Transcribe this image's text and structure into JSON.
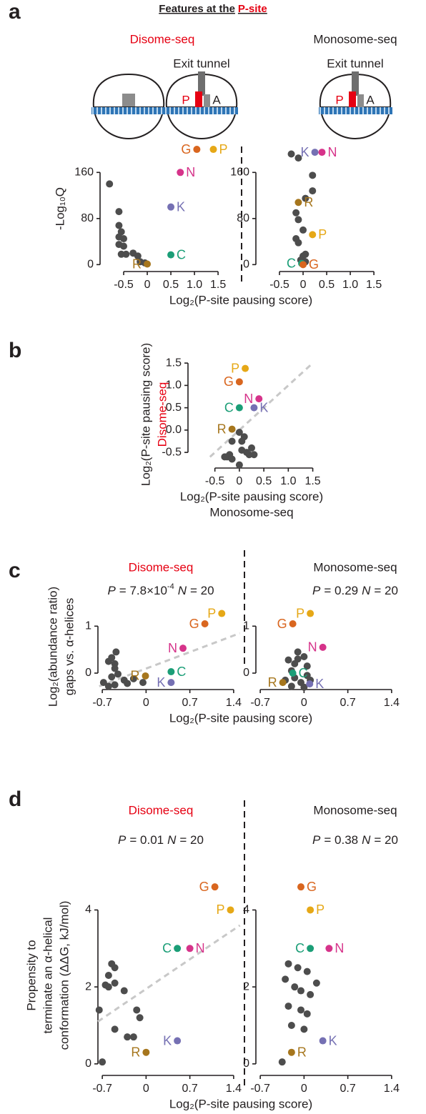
{
  "panel_labels": [
    "a",
    "b",
    "c",
    "d"
  ],
  "title": {
    "prefix": "Features at the",
    "highlight": "P-site"
  },
  "diagram": {
    "exit_tunnel": [
      "Exit tunnel",
      "Exit tunnel"
    ],
    "sites": [
      [
        "P",
        "A"
      ],
      [
        "P",
        "A"
      ]
    ]
  },
  "chart_data": [
    {
      "type": "scatter",
      "subtitle": "Disome-seq",
      "subtitle_color": "#e60012",
      "ylabel": [
        "-Log₁₀Q"
      ],
      "xlabel": [
        "Log₂(P-site pausing score)"
      ],
      "xlim": [
        -1.0,
        1.65
      ],
      "ylim": [
        -12,
        205
      ],
      "xticks": [
        -0.5,
        0,
        0.5,
        {
          "value": 1,
          "label": "1.0"
        },
        1.5
      ],
      "yticks": [
        0,
        80,
        160
      ],
      "series": [
        {
          "color": "#4d4d4d",
          "x": [
            -0.8,
            -0.6,
            -0.6,
            -0.55,
            -0.6,
            -0.5,
            -0.6,
            -0.5,
            -0.55,
            -0.45,
            -0.3,
            -0.2,
            -0.15,
            -0.05
          ],
          "y": [
            140,
            92,
            68,
            57,
            48,
            45,
            35,
            32,
            18,
            18,
            20,
            15,
            5,
            3
          ]
        }
      ],
      "points": [
        {
          "label": "G",
          "color": "#d9661f",
          "x": 1.05,
          "y": 200,
          "label_side": "left"
        },
        {
          "label": "P",
          "color": "#e6a817",
          "x": 1.4,
          "y": 200,
          "label_side": "right"
        },
        {
          "label": "N",
          "color": "#d6338a",
          "x": 0.7,
          "y": 160,
          "label_side": "right"
        },
        {
          "label": "K",
          "color": "#7570b3",
          "x": 0.5,
          "y": 100,
          "label_side": "right"
        },
        {
          "label": "C",
          "color": "#1b9e77",
          "x": 0.5,
          "y": 17,
          "label_side": "right"
        },
        {
          "label": "R",
          "color": "#a6761d",
          "x": 0,
          "y": 1,
          "label_side": "left"
        }
      ]
    },
    {
      "type": "scatter",
      "subtitle": "Monosome-seq",
      "subtitle_color": "#231f20",
      "xlim": [
        -1.0,
        1.65
      ],
      "ylim": [
        -12,
        205
      ],
      "xticks": [
        -0.5,
        0,
        0.5,
        {
          "value": 1,
          "label": "1.0"
        },
        1.5
      ],
      "yticks": [
        0,
        80,
        160
      ],
      "series": [
        {
          "color": "#4d4d4d",
          "x": [
            -0.25,
            -0.1,
            0.2,
            0.2,
            0.05,
            -0.15,
            -0.1,
            0,
            -0.15,
            -0.1,
            0,
            0.05,
            -0.05,
            0.05
          ],
          "y": [
            192,
            185,
            155,
            128,
            115,
            90,
            78,
            60,
            45,
            38,
            15,
            18,
            8,
            5
          ]
        }
      ],
      "points": [
        {
          "label": "K",
          "color": "#7570b3",
          "x": 0.25,
          "y": 195,
          "label_side": "left"
        },
        {
          "label": "N",
          "color": "#d6338a",
          "x": 0.4,
          "y": 195,
          "label_side": "right"
        },
        {
          "label": "R",
          "color": "#a6761d",
          "x": -0.1,
          "y": 108,
          "label_side": "right"
        },
        {
          "label": "P",
          "color": "#e6a817",
          "x": 0.2,
          "y": 52,
          "label_side": "right"
        },
        {
          "label": "C",
          "color": "#1b9e77",
          "x": -0.03,
          "y": 2,
          "label_side": "left"
        },
        {
          "label": "G",
          "color": "#d9661f",
          "x": 0,
          "y": 0,
          "label_side": "right"
        }
      ]
    },
    {
      "type": "scatter",
      "ylabel": [
        "Log₂(P-site pausing score)",
        "Disome-seq"
      ],
      "ylabel_colors": [
        "#231f20",
        "#e60012"
      ],
      "xlabel": [
        "Log₂(P-site pausing score)",
        "Monosome-seq"
      ],
      "xlim": [
        -1.05,
        1.55
      ],
      "ylim": [
        -0.85,
        1.55
      ],
      "xticks": [
        -0.5,
        0,
        0.5,
        {
          "value": 1,
          "label": "1.0"
        },
        1.5
      ],
      "yticks": [
        -0.5,
        {
          "value": 0,
          "label": "0.0"
        },
        0.5,
        {
          "value": 1,
          "label": "1.0"
        },
        1.5
      ],
      "trend": {
        "x": [
          -0.6,
          1.45
        ],
        "y": [
          -0.6,
          1.45
        ]
      },
      "series": [
        {
          "color": "#4d4d4d",
          "x": [
            0,
            0.1,
            0.05,
            -0.15,
            0.25,
            0.05,
            -0.2,
            -0.25,
            0.2,
            0.3,
            -0.15,
            -0.3,
            0,
            0.15
          ],
          "y": [
            -0.05,
            -0.15,
            -0.25,
            -0.25,
            -0.4,
            -0.45,
            -0.55,
            -0.6,
            -0.55,
            -0.55,
            -0.65,
            -0.6,
            -0.78,
            -0.5
          ]
        }
      ],
      "points": [
        {
          "label": "P",
          "color": "#e6a817",
          "x": 0.12,
          "y": 1.38,
          "label_side": "left"
        },
        {
          "label": "G",
          "color": "#d9661f",
          "x": 0,
          "y": 1.08,
          "label_side": "left"
        },
        {
          "label": "N",
          "color": "#d6338a",
          "x": 0.4,
          "y": 0.7,
          "label_side": "left"
        },
        {
          "label": "C",
          "color": "#1b9e77",
          "x": 0,
          "y": 0.5,
          "label_side": "left"
        },
        {
          "label": "K",
          "color": "#7570b3",
          "x": 0.3,
          "y": 0.5,
          "label_side": "right"
        },
        {
          "label": "R",
          "color": "#a6761d",
          "x": -0.15,
          "y": 0.02,
          "label_side": "left"
        }
      ]
    },
    {
      "type": "scatter",
      "subtitle": "Disome-seq",
      "subtitle_color": "#e60012",
      "stats": {
        "p_label": "P",
        "p_value": "= 7.8×10",
        "p_exp": "-4",
        "n_label": "N",
        "n_value": "= 20"
      },
      "ylabel": [
        "Log₂(abundance ratio)",
        "gaps vs. α-helices"
      ],
      "xlabel": [
        "Log₂(P-site pausing score)"
      ],
      "xlim": [
        -0.77,
        1.55
      ],
      "ylim": [
        -0.35,
        1.4
      ],
      "xticks": [
        -0.7,
        0,
        0.7,
        1.4
      ],
      "yticks": [
        0,
        1
      ],
      "trend": {
        "x": [
          -0.75,
          1.5
        ],
        "y": [
          -0.28,
          0.85
        ]
      },
      "series": [
        {
          "color": "#4d4d4d",
          "x": [
            -0.55,
            -0.48,
            -0.5,
            -0.6,
            -0.5,
            -0.45,
            -0.55,
            -0.35,
            -0.2,
            -0.05,
            -0.3,
            -0.5,
            -0.68,
            -0.6
          ],
          "y": [
            0.33,
            0.45,
            0.2,
            0.25,
            0.1,
            -0.02,
            -0.08,
            -0.15,
            -0.12,
            -0.2,
            -0.22,
            -0.25,
            -0.2,
            -0.28
          ]
        }
      ],
      "points": [
        {
          "label": "P",
          "color": "#e6a817",
          "x": 1.21,
          "y": 1.27,
          "label_side": "left"
        },
        {
          "label": "G",
          "color": "#d9661f",
          "x": 0.94,
          "y": 1.05,
          "label_side": "left"
        },
        {
          "label": "N",
          "color": "#d6338a",
          "x": 0.59,
          "y": 0.53,
          "label_side": "left"
        },
        {
          "label": "C",
          "color": "#1b9e77",
          "x": 0.4,
          "y": 0.03,
          "label_side": "right"
        },
        {
          "label": "K",
          "color": "#7570b3",
          "x": 0.4,
          "y": -0.2,
          "label_side": "left"
        },
        {
          "label": "R",
          "color": "#a6761d",
          "x": -0.01,
          "y": -0.06,
          "label_side": "left"
        }
      ]
    },
    {
      "type": "scatter",
      "subtitle": "Monosome-seq",
      "subtitle_color": "#231f20",
      "stats": {
        "p_label": "P",
        "p_value": "= 0.29",
        "n_label": "N",
        "n_value": "= 20"
      },
      "xlim": [
        -0.77,
        1.55
      ],
      "ylim": [
        -0.35,
        1.4
      ],
      "xticks": [
        -0.7,
        0,
        0.7,
        1.4
      ],
      "yticks": [
        0,
        1
      ],
      "series": [
        {
          "color": "#4d4d4d",
          "x": [
            -0.1,
            0,
            -0.1,
            -0.25,
            -0.15,
            0.05,
            -0.2,
            0.05,
            -0.15,
            -0.3,
            -0.05,
            0.1,
            -0.2,
            0
          ],
          "y": [
            0.45,
            0.35,
            0.3,
            0.28,
            0.2,
            0.15,
            0.05,
            -0.05,
            -0.1,
            -0.15,
            -0.2,
            -0.15,
            -0.28,
            -0.3
          ]
        }
      ],
      "points": [
        {
          "label": "P",
          "color": "#e6a817",
          "x": 0.1,
          "y": 1.27,
          "label_side": "left"
        },
        {
          "label": "G",
          "color": "#d9661f",
          "x": -0.18,
          "y": 1.05,
          "label_side": "left"
        },
        {
          "label": "N",
          "color": "#d6338a",
          "x": 0.3,
          "y": 0.55,
          "label_side": "left"
        },
        {
          "label": "C",
          "color": "#1b9e77",
          "x": -0.18,
          "y": 0,
          "label_side": "right"
        },
        {
          "label": "K",
          "color": "#7570b3",
          "x": 0.09,
          "y": -0.23,
          "label_side": "right"
        },
        {
          "label": "R",
          "color": "#a6761d",
          "x": -0.34,
          "y": -0.2,
          "label_side": "left"
        }
      ]
    },
    {
      "type": "scatter",
      "subtitle": "Disome-seq",
      "subtitle_color": "#e60012",
      "stats": {
        "p_label": "P",
        "p_value": "= 0.01",
        "n_label": "N",
        "n_value": "= 20"
      },
      "ylabel": [
        "Propensity to",
        "terminate an α-helical",
        "conformation (ΔΔG, kJ/mol)"
      ],
      "xlabel": [
        "Log₂(P-site pausing score)"
      ],
      "xlim": [
        -0.77,
        1.55
      ],
      "ylim": [
        -0.3,
        4.9
      ],
      "xticks": [
        -0.7,
        0,
        0.7,
        1.4
      ],
      "yticks": [
        0,
        2,
        4
      ],
      "trend": {
        "x": [
          -0.77,
          1.5
        ],
        "y": [
          1.1,
          3.6
        ]
      },
      "series": [
        {
          "color": "#4d4d4d",
          "x": [
            -0.55,
            -0.5,
            -0.6,
            -0.5,
            -0.6,
            -0.65,
            -0.35,
            -0.75,
            -0.15,
            -0.1,
            -0.5,
            -0.3,
            -0.2,
            -0.7
          ],
          "y": [
            2.6,
            2.5,
            2.3,
            2.1,
            2.0,
            2.05,
            1.9,
            1.4,
            1.4,
            1.2,
            0.9,
            0.7,
            0.7,
            0.05
          ]
        }
      ],
      "points": [
        {
          "label": "G",
          "color": "#d9661f",
          "x": 1.1,
          "y": 4.6,
          "label_side": "left"
        },
        {
          "label": "P",
          "color": "#e6a817",
          "x": 1.35,
          "y": 4.0,
          "label_side": "left"
        },
        {
          "label": "N",
          "color": "#d6338a",
          "x": 0.7,
          "y": 3.0,
          "label_side": "right"
        },
        {
          "label": "C",
          "color": "#1b9e77",
          "x": 0.5,
          "y": 3.0,
          "label_side": "left"
        },
        {
          "label": "K",
          "color": "#7570b3",
          "x": 0.5,
          "y": 0.6,
          "label_side": "left"
        },
        {
          "label": "R",
          "color": "#a6761d",
          "x": 0,
          "y": 0.3,
          "label_side": "left"
        }
      ]
    },
    {
      "type": "scatter",
      "subtitle": "Monosome-seq",
      "subtitle_color": "#231f20",
      "stats": {
        "p_label": "P",
        "p_value": "= 0.38",
        "n_label": "N",
        "n_value": "= 20"
      },
      "xlim": [
        -0.77,
        1.55
      ],
      "ylim": [
        -0.3,
        4.9
      ],
      "xticks": [
        -0.7,
        0,
        0.7,
        1.4
      ],
      "yticks": [
        0,
        2,
        4
      ],
      "series": [
        {
          "color": "#4d4d4d",
          "x": [
            -0.25,
            -0.1,
            0.05,
            -0.3,
            -0.15,
            0.2,
            -0.05,
            0.1,
            -0.25,
            -0.05,
            0.05,
            -0.2,
            0,
            -0.35
          ],
          "y": [
            2.6,
            2.5,
            2.4,
            2.2,
            2.0,
            2.1,
            1.9,
            1.8,
            1.5,
            1.4,
            1.3,
            1.0,
            0.9,
            0.05
          ]
        }
      ],
      "points": [
        {
          "label": "G",
          "color": "#d9661f",
          "x": -0.05,
          "y": 4.6,
          "label_side": "right"
        },
        {
          "label": "P",
          "color": "#e6a817",
          "x": 0.1,
          "y": 4.0,
          "label_side": "right"
        },
        {
          "label": "N",
          "color": "#d6338a",
          "x": 0.4,
          "y": 3.0,
          "label_side": "right"
        },
        {
          "label": "C",
          "color": "#1b9e77",
          "x": 0.1,
          "y": 3.0,
          "label_side": "left"
        },
        {
          "label": "K",
          "color": "#7570b3",
          "x": 0.3,
          "y": 0.6,
          "label_side": "right"
        },
        {
          "label": "R",
          "color": "#a6761d",
          "x": -0.2,
          "y": 0.3,
          "label_side": "right"
        }
      ]
    }
  ]
}
